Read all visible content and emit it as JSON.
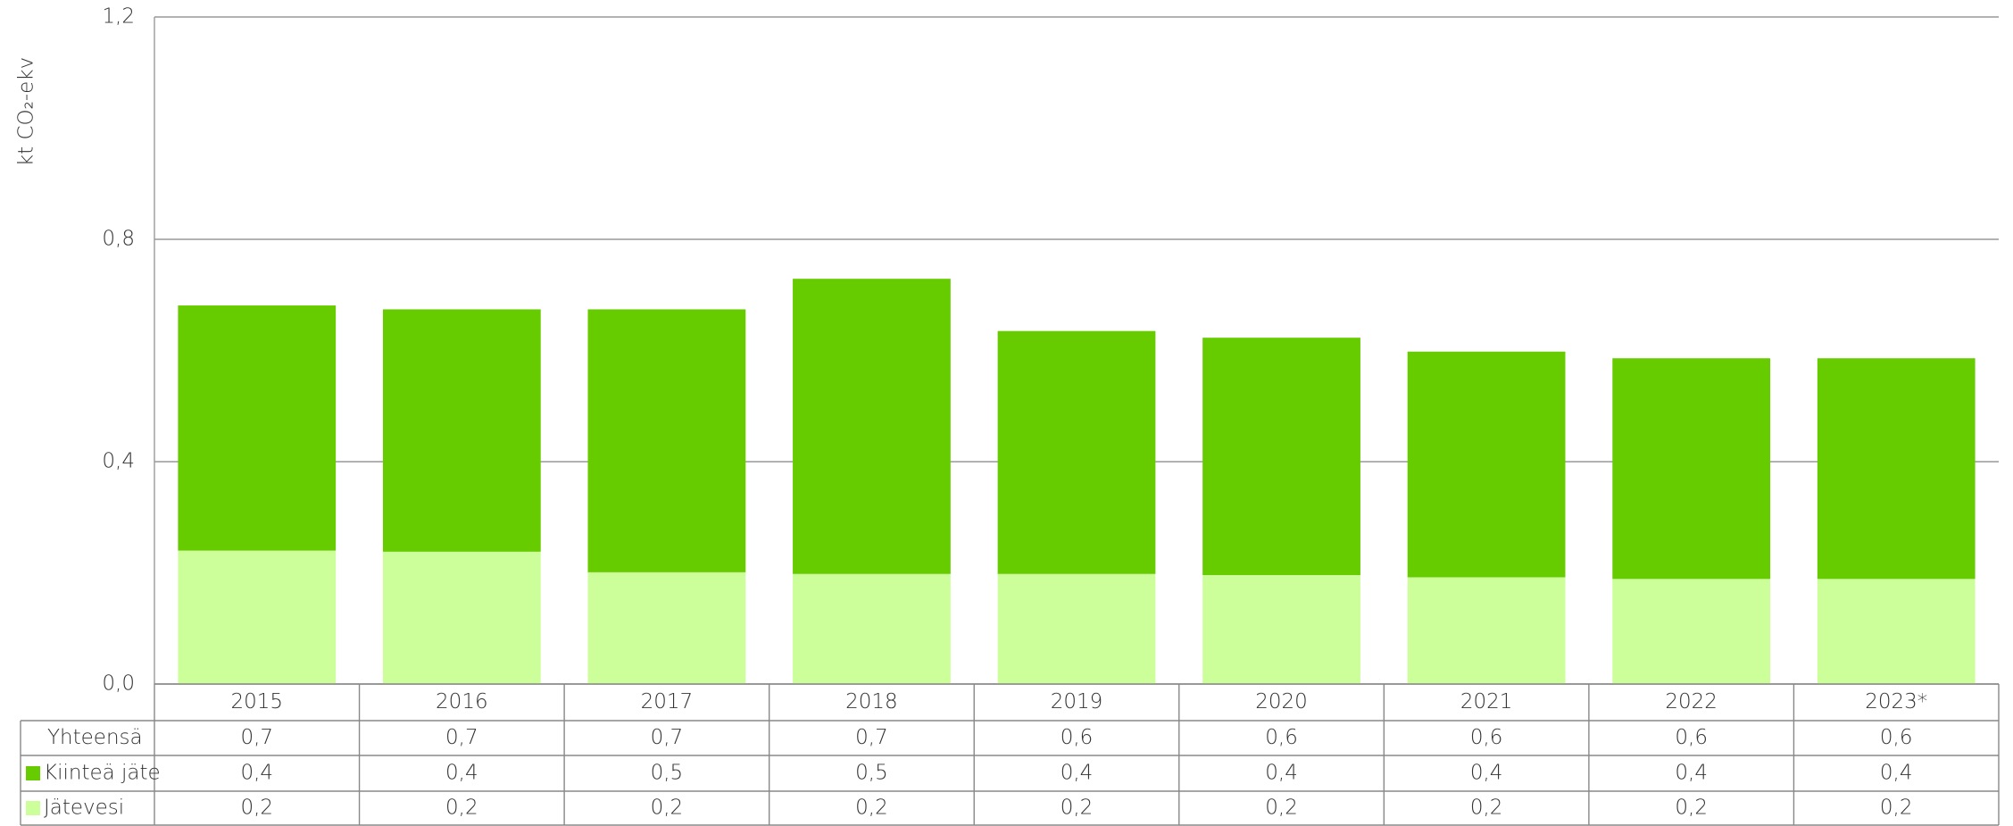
{
  "chart_data": {
    "type": "stacked_bar",
    "y_label": "kt CO₂-ekv",
    "categories": [
      "2015",
      "2016",
      "2017",
      "2018",
      "2019",
      "2020",
      "2021",
      "2022",
      "2023*"
    ],
    "series": [
      {
        "name": "Kiinteä jäte",
        "color": "#66cc00",
        "values": [
          0.441,
          0.436,
          0.473,
          0.531,
          0.437,
          0.427,
          0.406,
          0.397,
          0.397
        ],
        "value_labels": [
          "0,4",
          "0,4",
          "0,5",
          "0,5",
          "0,4",
          "0,4",
          "0,4",
          "0,4",
          "0,4"
        ]
      },
      {
        "name": "Jätevesi",
        "color": "#ccff99",
        "values": [
          0.24,
          0.238,
          0.201,
          0.198,
          0.198,
          0.196,
          0.192,
          0.189,
          0.189
        ],
        "value_labels": [
          "0,2",
          "0,2",
          "0,2",
          "0,2",
          "0,2",
          "0,2",
          "0,2",
          "0,2",
          "0,2"
        ]
      }
    ],
    "totals": {
      "name": "Yhteensä",
      "values": [
        0.681,
        0.674,
        0.674,
        0.729,
        0.635,
        0.623,
        0.598,
        0.586,
        0.586
      ],
      "value_labels": [
        "0,7",
        "0,7",
        "0,7",
        "0,7",
        "0,6",
        "0,6",
        "0,6",
        "0,6",
        "0,6"
      ]
    },
    "ylim": [
      0,
      1.2
    ],
    "yticks": [
      {
        "value": 0,
        "label": "0,0"
      },
      {
        "value": 0.4,
        "label": "0,4"
      },
      {
        "value": 0.8,
        "label": "0,8"
      },
      {
        "value": 1.2,
        "label": "1,2"
      }
    ],
    "grid": true
  }
}
